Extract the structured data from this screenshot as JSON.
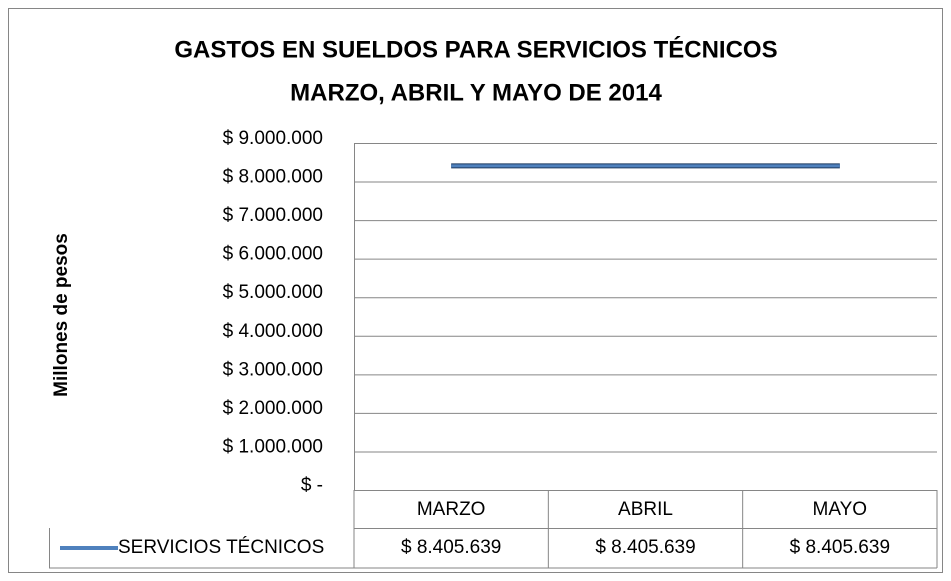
{
  "chart_data": {
    "type": "line",
    "title": "GASTOS EN SUELDOS PARA SERVICIOS TÉCNICOS",
    "subtitle": "MARZO, ABRIL Y MAYO DE 2014",
    "y_label": "Millones de pesos",
    "categories": [
      "MARZO",
      "ABRIL",
      "MAYO"
    ],
    "series": [
      {
        "name": "SERVICIOS TÉCNICOS",
        "color": "#4f81bd",
        "values": [
          8405639,
          8405639,
          8405639
        ],
        "value_labels": [
          "$ 8.405.639",
          "$ 8.405.639",
          "$ 8.405.639"
        ]
      }
    ],
    "ylim": [
      0,
      9000000
    ],
    "yticks": [
      {
        "value": 0,
        "label": "$ -"
      },
      {
        "value": 1000000,
        "label": "$ 1.000.000"
      },
      {
        "value": 2000000,
        "label": "$ 2.000.000"
      },
      {
        "value": 3000000,
        "label": "$ 3.000.000"
      },
      {
        "value": 4000000,
        "label": "$ 4.000.000"
      },
      {
        "value": 5000000,
        "label": "$ 5.000.000"
      },
      {
        "value": 6000000,
        "label": "$ 6.000.000"
      },
      {
        "value": 7000000,
        "label": "$ 7.000.000"
      },
      {
        "value": 8000000,
        "label": "$ 8.000.000"
      },
      {
        "value": 9000000,
        "label": "$ 9.000.000"
      }
    ],
    "grid": true,
    "data_table": true
  }
}
